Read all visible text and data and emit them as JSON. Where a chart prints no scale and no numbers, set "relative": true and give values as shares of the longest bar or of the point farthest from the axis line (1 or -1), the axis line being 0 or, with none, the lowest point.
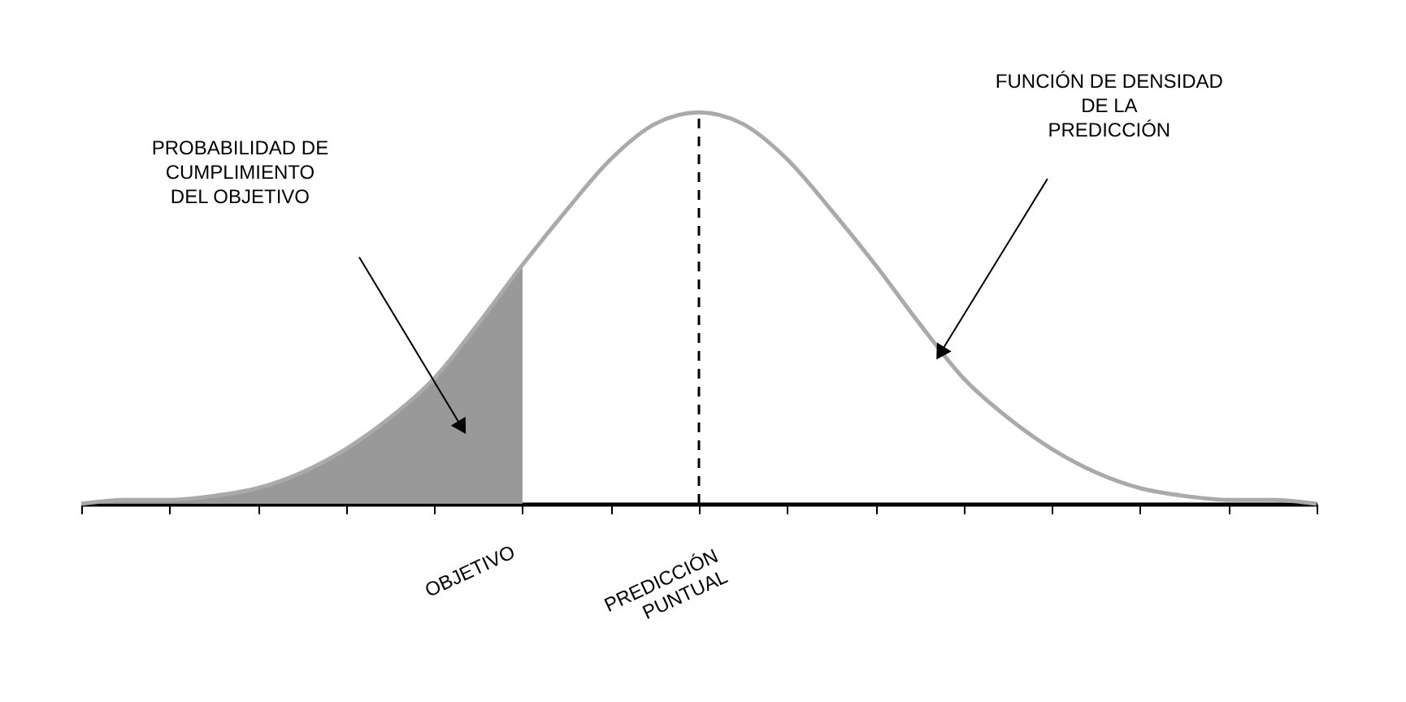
{
  "chart_data": {
    "type": "line",
    "relative": true,
    "categories": [
      null,
      null,
      null,
      null,
      null,
      null,
      null,
      null,
      null,
      null,
      null,
      null,
      null,
      null,
      null,
      null,
      null,
      null,
      null,
      null,
      null,
      null,
      null,
      null,
      null,
      null,
      null,
      null,
      null
    ],
    "series": [
      {
        "type": "area",
        "color": "#999999",
        "values": [
          0.0,
          0.01,
          0.01,
          0.02,
          0.04,
          0.08,
          0.14,
          0.22,
          0.32,
          0.46,
          0.61,
          null,
          null,
          null,
          null,
          null,
          null,
          null,
          null,
          null,
          null,
          null,
          null,
          null,
          null,
          null,
          null,
          null,
          null
        ]
      },
      {
        "color": "#aaaaaa",
        "values": [
          0.0,
          0.01,
          0.01,
          0.02,
          0.04,
          0.08,
          0.14,
          0.22,
          0.32,
          0.46,
          0.61,
          0.75,
          0.88,
          0.97,
          1.0,
          0.97,
          0.88,
          0.75,
          0.61,
          0.46,
          0.32,
          0.22,
          0.14,
          0.08,
          0.04,
          0.02,
          0.01,
          0.01,
          0.0
        ]
      }
    ],
    "ref_lines": [
      {
        "axis": "x",
        "value": null,
        "label": "PREDICCIÓN\nPUNTUAL",
        "color": "#000000",
        "line_style": "dashed"
      }
    ],
    "annotations": [
      "PROBABILIDAD DE\nCUMPLIMIENTO\nDEL OBJETIVO",
      "FUNCIÓN DE DENSIDAD\nDE LA\nPREDICCIÓN",
      "OBJETIVO"
    ],
    "grid": false
  }
}
